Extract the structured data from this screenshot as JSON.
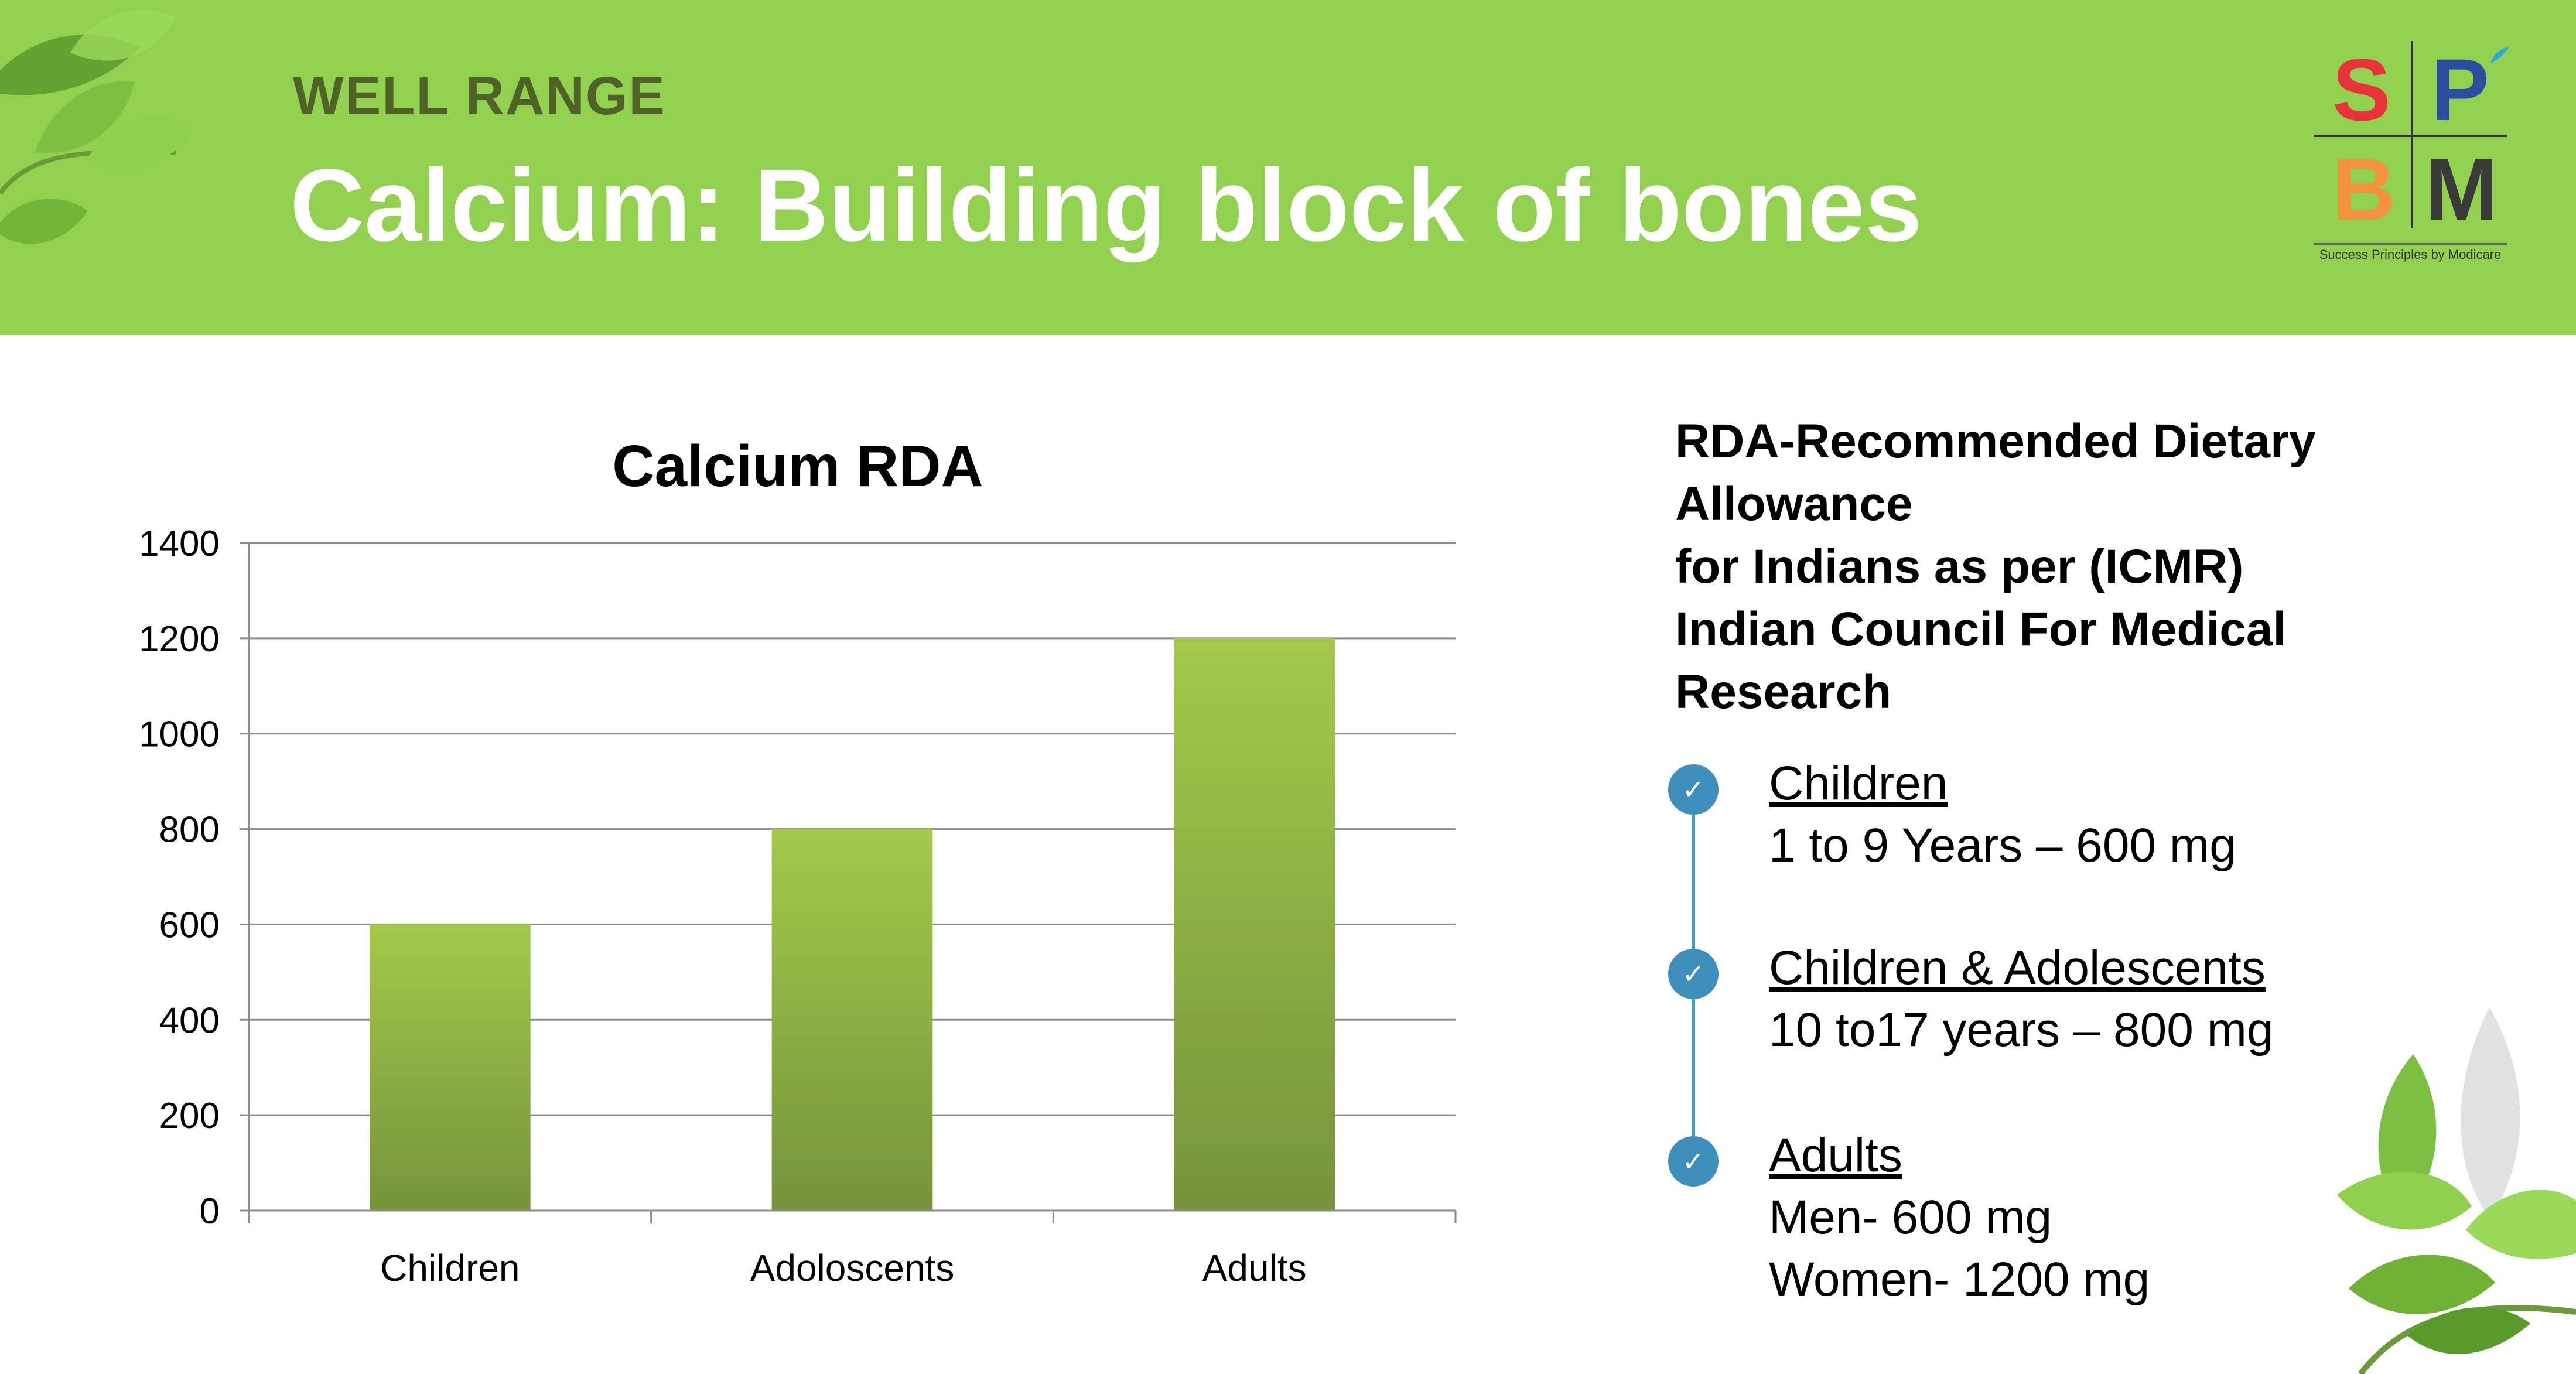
{
  "header": {
    "subtitle": "WELL RANGE",
    "title": "Calcium: Building block of bones",
    "background_color": "#92d050"
  },
  "logo": {
    "letters": [
      "S",
      "P",
      "B",
      "M"
    ],
    "letter_colors": [
      "#e8333a",
      "#2b4f9e",
      "#f5923e",
      "#3a3a3a"
    ],
    "tagline": "Success Principles by Modicare"
  },
  "chart_data": {
    "type": "bar",
    "title": "Calcium RDA",
    "categories": [
      "Children",
      "Adoloscents",
      "Adults"
    ],
    "values": [
      600,
      800,
      1200
    ],
    "ylim": [
      0,
      1400
    ],
    "yticks": [
      0,
      200,
      400,
      600,
      800,
      1000,
      1200,
      1400
    ],
    "grid": true,
    "bar_color_top": "#a4c94a",
    "bar_color_bottom": "#76933c"
  },
  "rda": {
    "heading_lines": [
      "RDA-Recommended Dietary",
      "Allowance",
      "for Indians as per  (ICMR)",
      "Indian Council For Medical",
      "Research"
    ],
    "items": [
      {
        "heading": "Children",
        "details": [
          "1 to 9 Years – 600 mg"
        ]
      },
      {
        "heading": "Children & Adolescents",
        "details": [
          "10 to17 years – 800 mg"
        ]
      },
      {
        "heading": "Adults",
        "details": [
          "Men- 600 mg",
          "Women- 1200 mg"
        ]
      }
    ],
    "icon": "check-icon",
    "accent_color": "#3e8fbb"
  }
}
